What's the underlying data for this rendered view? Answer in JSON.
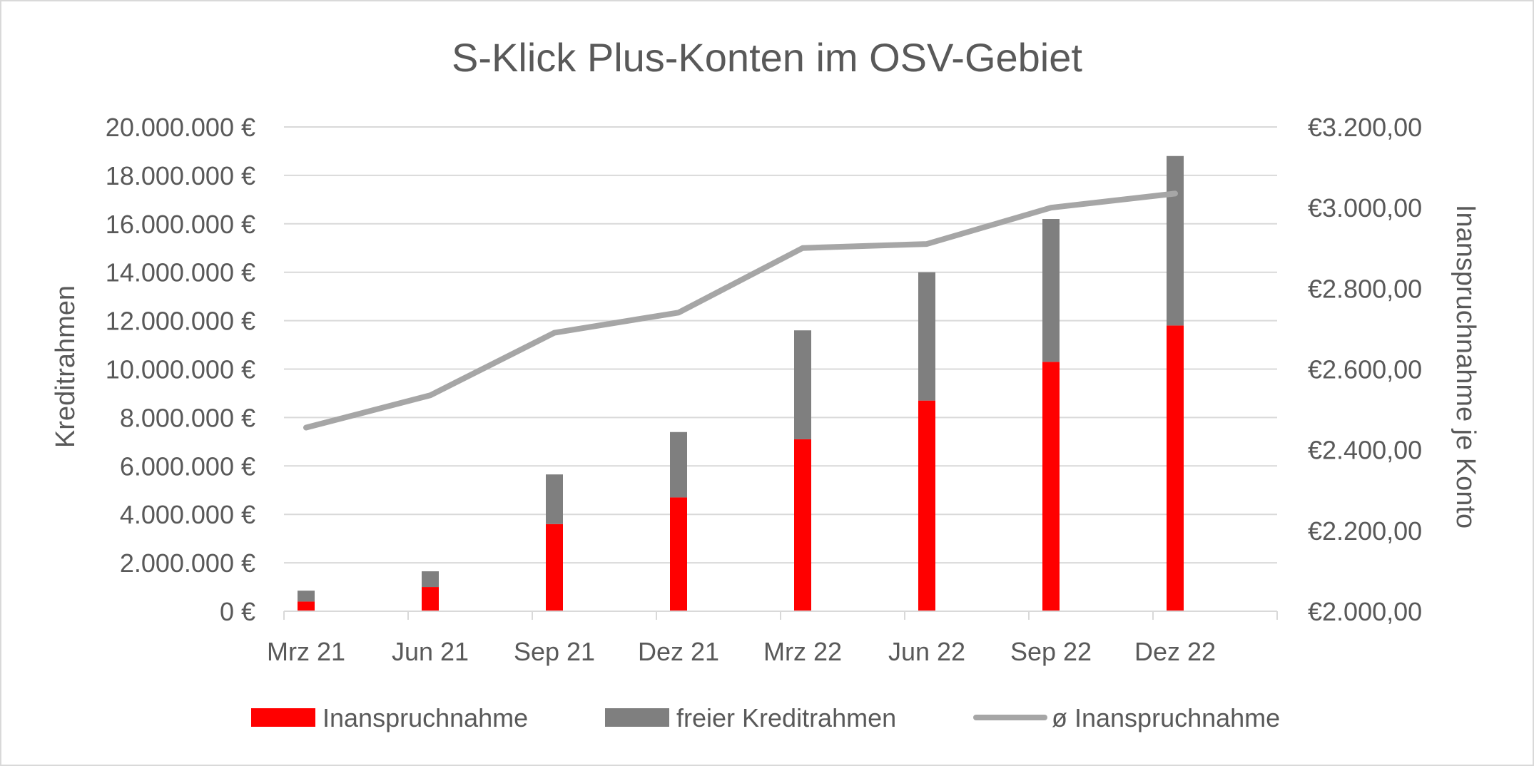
{
  "chart_data": {
    "type": "bar",
    "title": "S-Klick Plus-Konten im OSV-Gebiet",
    "categories": [
      "Mrz 21",
      "Jun 21",
      "Sep 21",
      "Dez 21",
      "Mrz 22",
      "Jun 22",
      "Sep 22",
      "Dez 22"
    ],
    "stacked": true,
    "series": [
      {
        "name": "Inanspruchnahme",
        "type": "bar",
        "axis": "left",
        "color": "#ff0000",
        "values": [
          400000,
          1000000,
          3600000,
          4700000,
          7100000,
          8700000,
          10300000,
          11800000
        ]
      },
      {
        "name": "freier Kreditrahmen",
        "type": "bar",
        "axis": "left",
        "color": "#7f7f7f",
        "values": [
          450000,
          650000,
          2050000,
          2700000,
          4500000,
          5300000,
          5900000,
          7000000
        ]
      },
      {
        "name": "ø Inanspruchnahme",
        "type": "line",
        "axis": "right",
        "color": "#a6a6a6",
        "values": [
          2455,
          2535,
          2690,
          2740,
          2900,
          2910,
          3000,
          3035
        ]
      }
    ],
    "ylabel": "Kreditrahmen",
    "y2label": "Inanspruchnahme je Konto",
    "ylim": [
      0,
      20000000
    ],
    "y2lim": [
      2000,
      3200
    ],
    "yticks": [
      0,
      2000000,
      4000000,
      6000000,
      8000000,
      10000000,
      12000000,
      14000000,
      16000000,
      18000000,
      20000000
    ],
    "ytick_labels": [
      "0 €",
      "2.000.000 €",
      "4.000.000 €",
      "6.000.000 €",
      "8.000.000 €",
      "10.000.000 €",
      "12.000.000 €",
      "14.000.000 €",
      "16.000.000 €",
      "18.000.000 €",
      "20.000.000 €"
    ],
    "y2ticks": [
      2000,
      2200,
      2400,
      2600,
      2800,
      3000,
      3200
    ],
    "y2tick_labels": [
      "€2.000,00",
      "€2.200,00",
      "€2.400,00",
      "€2.600,00",
      "€2.800,00",
      "€3.000,00",
      "€3.200,00"
    ],
    "grid": true,
    "legend_position": "bottom"
  }
}
